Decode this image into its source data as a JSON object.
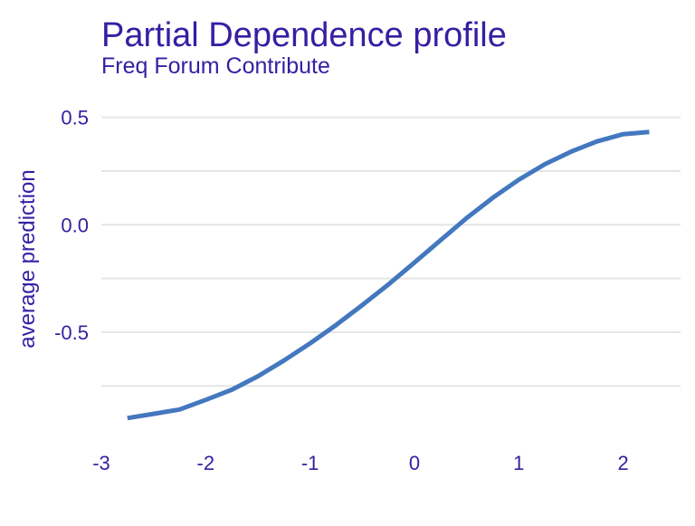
{
  "colors": {
    "title": "#371EA3",
    "text": "#371EA3",
    "line": "#4378BF",
    "grid": "#E5E5E5",
    "background": "#FFFFFF"
  },
  "chart_data": {
    "type": "line",
    "title": "Partial Dependence profile",
    "subtitle": "Freq  Forum  Contribute",
    "xlabel": "",
    "ylabel": "average prediction",
    "xlim": [
      -3.0,
      2.55
    ],
    "ylim": [
      -0.985,
      0.625
    ],
    "x_ticks": [
      -3,
      -2,
      -1,
      0,
      1,
      2
    ],
    "x_tick_labels": [
      "-3",
      "-2",
      "-1",
      "0",
      "1",
      "2"
    ],
    "y_ticks": [
      -0.5,
      0.0,
      0.5
    ],
    "y_tick_labels": [
      "-0.5",
      "0.0",
      "0.5"
    ],
    "y_minor_gridlines": [
      -0.75,
      -0.25,
      0.25
    ],
    "grid": "horizontal",
    "legend": "none",
    "series": [
      {
        "x": [
          -2.75,
          -2.5,
          -2.25,
          -2.0,
          -1.75,
          -1.5,
          -1.25,
          -1.0,
          -0.75,
          -0.5,
          -0.25,
          0.0,
          0.25,
          0.5,
          0.75,
          1.0,
          1.25,
          1.5,
          1.75,
          2.0,
          2.25
        ],
        "y": [
          -0.9,
          -0.88,
          -0.86,
          -0.815,
          -0.768,
          -0.705,
          -0.632,
          -0.552,
          -0.466,
          -0.374,
          -0.278,
          -0.176,
          -0.072,
          0.031,
          0.125,
          0.21,
          0.282,
          0.34,
          0.388,
          0.422,
          0.432
        ]
      }
    ]
  }
}
